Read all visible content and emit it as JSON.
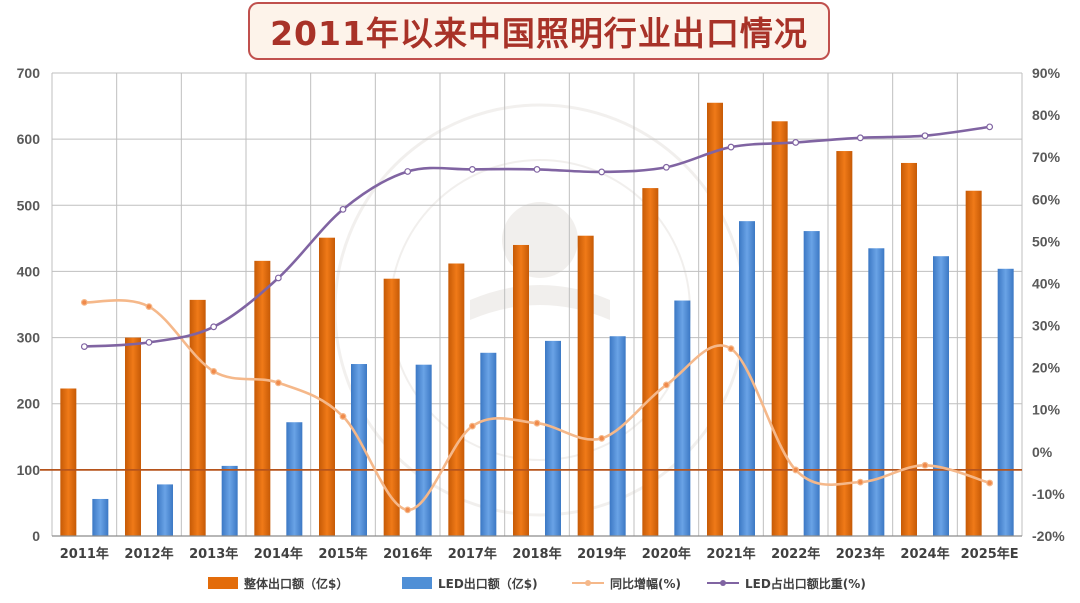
{
  "title": "2011年以来中国照明行业出口情况",
  "colors": {
    "total_bar": "#e36c0a",
    "led_bar": "#4f8fd6",
    "yoy_line": "#f5b88a",
    "share_line": "#8064a2",
    "baseline": "#b5541c",
    "grid": "#bfbfbf",
    "title_border": "#c0504d",
    "title_bg": "#fdf3ea",
    "title_text": "#a83228"
  },
  "legend": [
    {
      "label": "整体出口额（亿$）",
      "kind": "bar",
      "color_key": "total_bar"
    },
    {
      "label": "LED出口额（亿$)",
      "kind": "bar",
      "color_key": "led_bar"
    },
    {
      "label": "同比增幅(%)",
      "kind": "line",
      "color_key": "yoy_line"
    },
    {
      "label": "LED占出口额比重(%)",
      "kind": "line",
      "color_key": "share_line"
    }
  ],
  "chart_data": {
    "type": "bar",
    "title": "2011年以来中国照明行业出口情况",
    "categories": [
      "2011年",
      "2012年",
      "2013年",
      "2014年",
      "2015年",
      "2016年",
      "2017年",
      "2018年",
      "2019年",
      "2020年",
      "2021年",
      "2022年",
      "2023年",
      "2024年",
      "2025年E"
    ],
    "left_axis": {
      "ylim": [
        0,
        700
      ],
      "ticks": [
        0,
        100,
        200,
        300,
        400,
        500,
        600,
        700
      ],
      "tick_labels": [
        "0",
        "100",
        "200",
        "300",
        "400",
        "500",
        "600",
        "700"
      ]
    },
    "right_axis": {
      "ylim": [
        -20,
        90
      ],
      "ticks": [
        -20,
        -10,
        0,
        10,
        20,
        30,
        40,
        50,
        60,
        70,
        80,
        90
      ],
      "tick_labels": [
        "-20%",
        "-10%",
        "0%",
        "10%",
        "20%",
        "30%",
        "40%",
        "50%",
        "60%",
        "70%",
        "80%",
        "90%"
      ]
    },
    "series": [
      {
        "name": "整体出口额（亿$）",
        "type": "bar",
        "axis": "left",
        "values": [
          223,
          300,
          357,
          416,
          451,
          389,
          412,
          440,
          454,
          526,
          655,
          627,
          582,
          564,
          522
        ]
      },
      {
        "name": "LED出口额（亿$)",
        "type": "bar",
        "axis": "left",
        "values": [
          56,
          78,
          106,
          172,
          260,
          259,
          277,
          295,
          302,
          356,
          476,
          461,
          435,
          423,
          404
        ]
      },
      {
        "name": "同比增幅(%)",
        "type": "line",
        "axis": "right",
        "values": [
          35.5,
          34.5,
          19.1,
          16.4,
          8.4,
          -13.8,
          6.1,
          6.8,
          3.2,
          15.9,
          24.5,
          -4.3,
          -7.2,
          -3.2,
          -7.4
        ]
      },
      {
        "name": "LED占出口额比重(%)",
        "type": "line",
        "axis": "right",
        "values": [
          25,
          26,
          29.7,
          41.3,
          57.6,
          66.6,
          67.1,
          67.1,
          66.5,
          67.6,
          72.4,
          73.5,
          74.6,
          75.1,
          77.2
        ]
      }
    ],
    "reference_line_value": 100
  }
}
